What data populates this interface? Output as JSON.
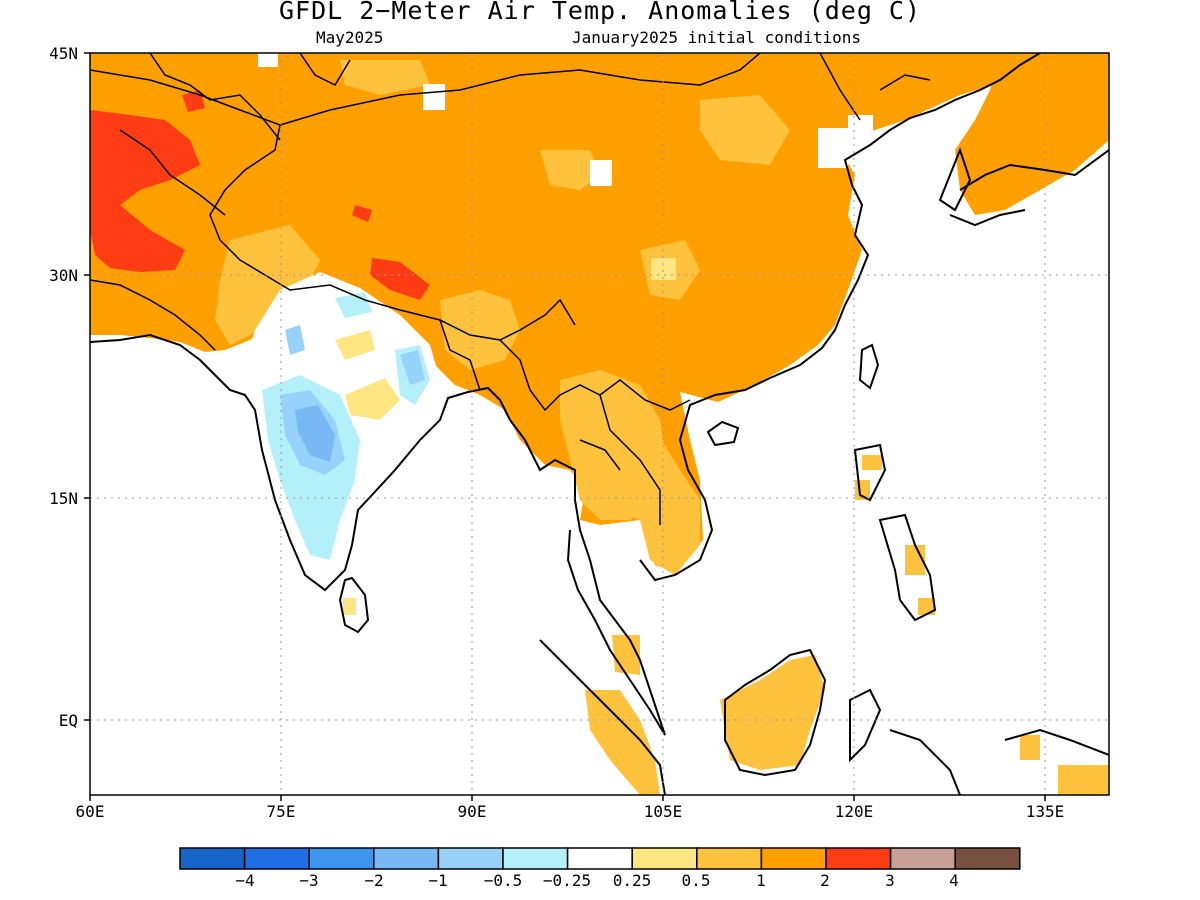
{
  "title": "GFDL 2−Meter Air Temp. Anomalies (deg C)",
  "subtitle_left": "May2025",
  "subtitle_right": "January2025 initial conditions",
  "map": {
    "lon_range": [
      60,
      140
    ],
    "lat_range": [
      -5,
      45
    ],
    "lat_ticks": [
      "45N",
      "30N",
      "15N",
      "EQ"
    ],
    "lon_ticks": [
      "60E",
      "75E",
      "90E",
      "105E",
      "120E",
      "135E"
    ],
    "grid": "dotted"
  },
  "colorbar": {
    "colors": [
      "#1565c8",
      "#1e6fe6",
      "#3c96f0",
      "#78b9f5",
      "#96d2fa",
      "#b4f0fa",
      "#ffffff",
      "#ffe682",
      "#ffc23c",
      "#ffa000",
      "#ff3c14",
      "#c8a096",
      "#785040"
    ],
    "labels": [
      "−4",
      "−3",
      "−2",
      "−1",
      "−0.5",
      "−0.25",
      "0.25",
      "0.5",
      "1",
      "2",
      "3",
      "4"
    ]
  }
}
